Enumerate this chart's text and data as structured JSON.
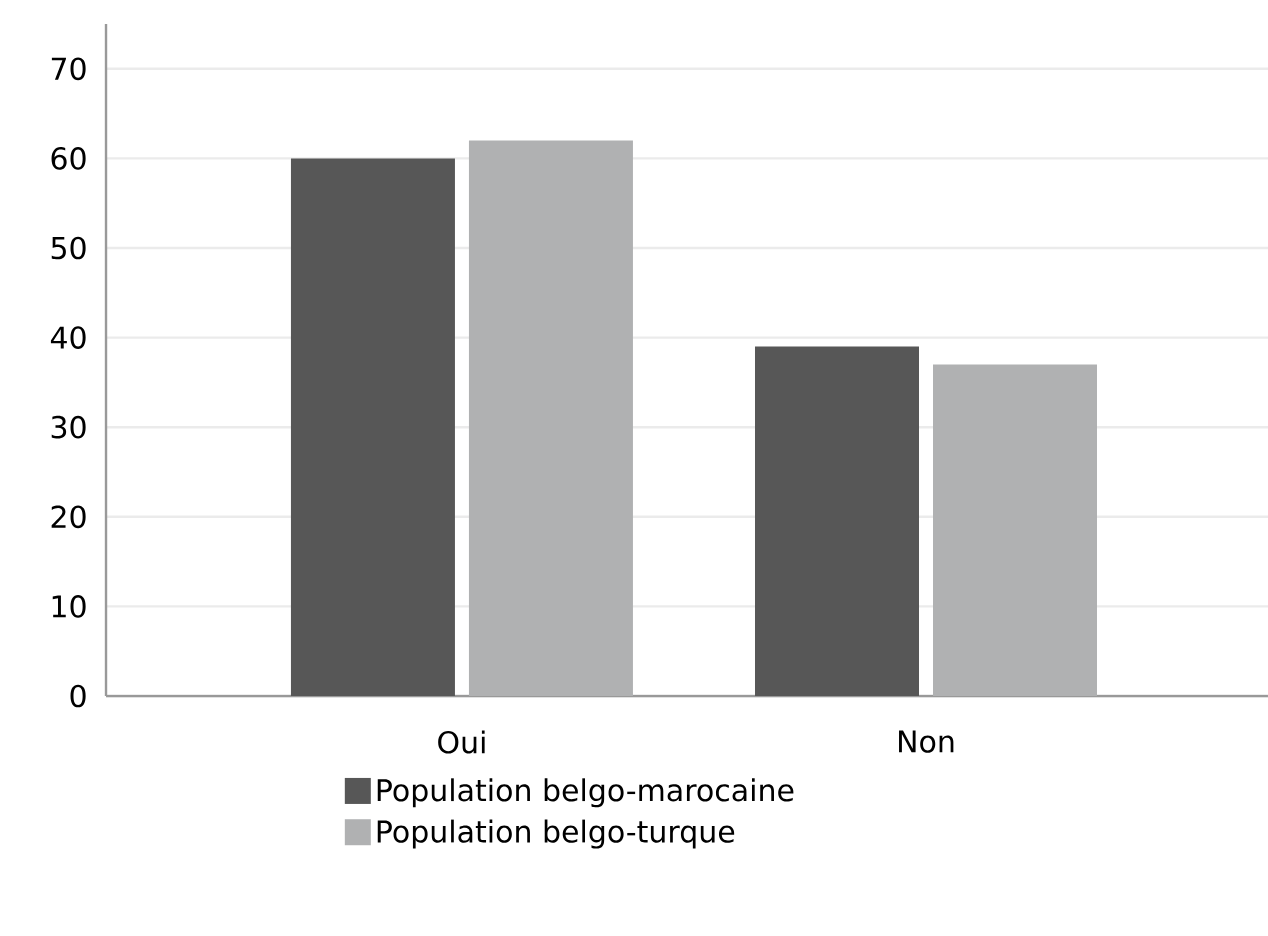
{
  "chart_data": {
    "type": "bar",
    "categories": [
      "Oui",
      "Non"
    ],
    "series": [
      {
        "name": "Population belgo-marocaine",
        "color": "#575757",
        "values": [
          60,
          39
        ]
      },
      {
        "name": "Population belgo-turque",
        "color": "#b0b1b2",
        "values": [
          62,
          37
        ]
      }
    ],
    "ylim": [
      0,
      75
    ],
    "yticks": [
      0,
      10,
      20,
      30,
      40,
      50,
      60,
      70
    ],
    "grid": "y",
    "legend": "bottom"
  }
}
